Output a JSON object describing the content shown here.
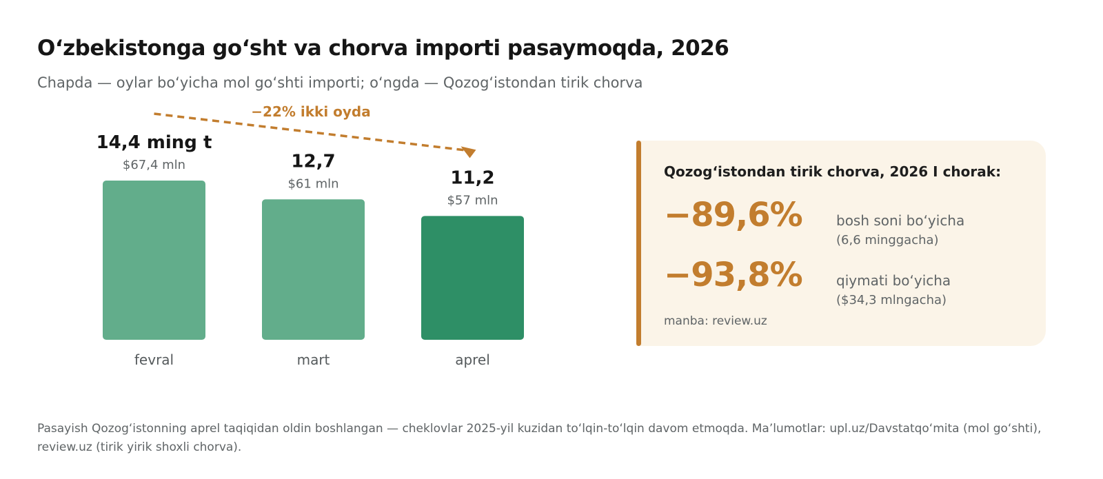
{
  "title": "Oʻzbekistonga goʻsht va chorva importi pasaymoqda, 2026",
  "subtitle": "Chapda — oylar boʻyicha mol goʻshti importi; oʻngda — Qozogʻistondan tirik chorva",
  "chart_data": {
    "type": "bar",
    "title": "Oʻzbekistonga goʻsht va chorva importi pasaymoqda, 2026",
    "categories": [
      "fevral",
      "mart",
      "aprel"
    ],
    "values": [
      14.4,
      12.7,
      11.2
    ],
    "value_labels": [
      "14,4 ming t",
      "12,7",
      "11,2"
    ],
    "sub_labels": [
      "$67,4 mln",
      "$61 mln",
      "$57 mln"
    ],
    "ylim": [
      0,
      14.4
    ],
    "colors": [
      "#62ad8b",
      "#62ad8b",
      "#2e8f66"
    ],
    "annotation": "−22% ikki oyda",
    "annotation_color": "#c27d2e",
    "grid": false,
    "legend": "none"
  },
  "panel": {
    "title": "Qozogʻistondan tirik chorva, 2026 I chorak:",
    "stats": [
      {
        "value": "−89,6%",
        "label": "bosh soni boʻyicha",
        "note": "(6,6 minggacha)"
      },
      {
        "value": "−93,8%",
        "label": "qiymati boʻyicha",
        "note": "($34,3 mlngacha)"
      }
    ],
    "source": "manba: review.uz",
    "accent_color": "#c27d2e",
    "background_color": "#fbf4e8"
  },
  "footnote": "Pasayish Qozogʻistonning aprel taqiqidan oldin boshlangan — cheklovlar 2025-yil kuzidan toʻlqin-toʻlqin davom etmoqda. Maʼlumotlar: upl.uz/Davstatqoʻmita (mol goʻshti), review.uz (tirik yirik shoxli chorva)."
}
